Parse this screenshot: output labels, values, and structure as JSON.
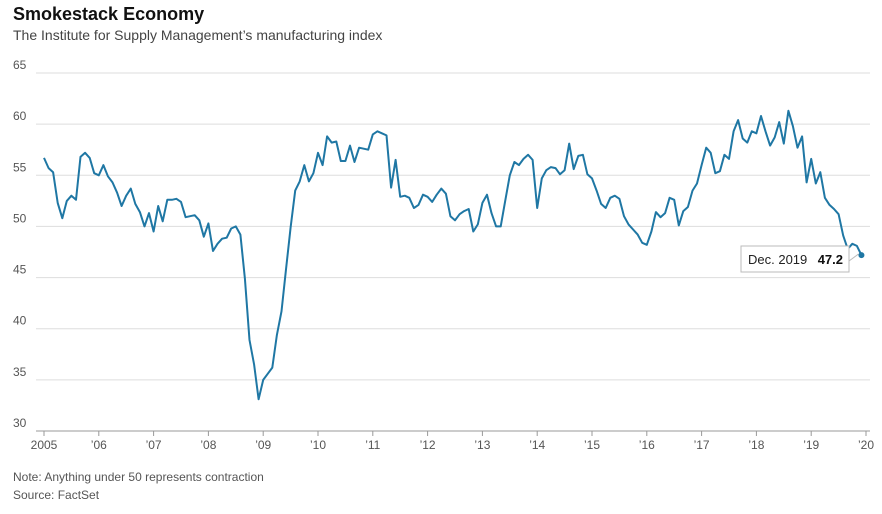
{
  "header": {
    "title": "Smokestack Economy",
    "subtitle": "The Institute for Supply Management’s manufacturing index"
  },
  "footer": {
    "note": "Note: Anything under 50 represents contraction",
    "source": "Source: FactSet"
  },
  "callout": {
    "label": "Dec. 2019",
    "value": "47.2"
  },
  "colors": {
    "line": "#1f77a4",
    "grid": "#dddddd",
    "axis": "#555555"
  },
  "chart_data": {
    "type": "line",
    "title": "Smokestack Economy",
    "subtitle": "The Institute for Supply Management’s manufacturing index",
    "xlabel": "",
    "ylabel": "",
    "ylim": [
      30,
      65
    ],
    "yticks": [
      65,
      60,
      55,
      50,
      45,
      40,
      35,
      30
    ],
    "grid": true,
    "xlim": [
      2005.0,
      2020.0
    ],
    "xticks": [
      {
        "x": 2005,
        "label": "2005"
      },
      {
        "x": 2006,
        "label": "’06"
      },
      {
        "x": 2007,
        "label": "’07"
      },
      {
        "x": 2008,
        "label": "’08"
      },
      {
        "x": 2009,
        "label": "’09"
      },
      {
        "x": 2010,
        "label": "’10"
      },
      {
        "x": 2011,
        "label": "’11"
      },
      {
        "x": 2012,
        "label": "’12"
      },
      {
        "x": 2013,
        "label": "’13"
      },
      {
        "x": 2014,
        "label": "’14"
      },
      {
        "x": 2015,
        "label": "’15"
      },
      {
        "x": 2016,
        "label": "’16"
      },
      {
        "x": 2017,
        "label": "’17"
      },
      {
        "x": 2018,
        "label": "’18"
      },
      {
        "x": 2019,
        "label": "’19"
      },
      {
        "x": 2020,
        "label": "’20"
      }
    ],
    "series": [
      {
        "start": "2005-01",
        "frequency": "monthly",
        "values": [
          56.7,
          55.7,
          55.3,
          52.3,
          50.8,
          52.5,
          53.0,
          52.6,
          56.8,
          57.2,
          56.7,
          55.2,
          55.0,
          56.0,
          54.9,
          54.3,
          53.3,
          52.0,
          53.0,
          53.7,
          52.2,
          51.4,
          50.0,
          51.3,
          49.5,
          52.0,
          50.5,
          52.6,
          52.6,
          52.7,
          52.4,
          50.9,
          51.0,
          51.1,
          50.6,
          49.0,
          50.3,
          47.6,
          48.3,
          48.8,
          48.9,
          49.8,
          50.0,
          49.2,
          44.9,
          38.9,
          36.5,
          33.1,
          35.0,
          35.6,
          36.2,
          39.4,
          41.7,
          45.8,
          49.9,
          53.5,
          54.4,
          56.0,
          54.4,
          55.2,
          57.2,
          56.0,
          58.8,
          58.2,
          58.3,
          56.4,
          56.4,
          57.9,
          56.3,
          57.7,
          57.6,
          57.5,
          59.0,
          59.3,
          59.1,
          58.9,
          53.8,
          56.5,
          52.9,
          53.0,
          52.8,
          51.8,
          52.1,
          53.1,
          52.9,
          52.4,
          53.1,
          53.7,
          53.2,
          51.0,
          50.6,
          51.2,
          51.5,
          51.7,
          49.5,
          50.2,
          52.3,
          53.1,
          51.3,
          50.0,
          50.0,
          52.5,
          55.0,
          56.3,
          56.0,
          56.6,
          57.0,
          56.5,
          51.8,
          54.7,
          55.5,
          55.8,
          55.7,
          55.1,
          55.5,
          58.1,
          55.6,
          56.9,
          57.0,
          55.1,
          54.7,
          53.5,
          52.2,
          51.8,
          52.8,
          53.0,
          52.7,
          51.0,
          50.2,
          49.7,
          49.2,
          48.4,
          48.2,
          49.5,
          51.4,
          50.9,
          51.3,
          52.8,
          52.6,
          50.1,
          51.5,
          51.9,
          53.5,
          54.2,
          56.0,
          57.7,
          57.2,
          55.2,
          55.4,
          57.0,
          56.6,
          59.3,
          60.4,
          58.6,
          58.2,
          59.3,
          59.1,
          60.8,
          59.3,
          57.9,
          58.7,
          60.2,
          58.1,
          61.3,
          59.8,
          57.7,
          58.8,
          54.3,
          56.6,
          54.2,
          55.3,
          52.8,
          52.1,
          51.7,
          51.2,
          49.1,
          47.8,
          48.3,
          48.1,
          47.2
        ]
      }
    ]
  }
}
